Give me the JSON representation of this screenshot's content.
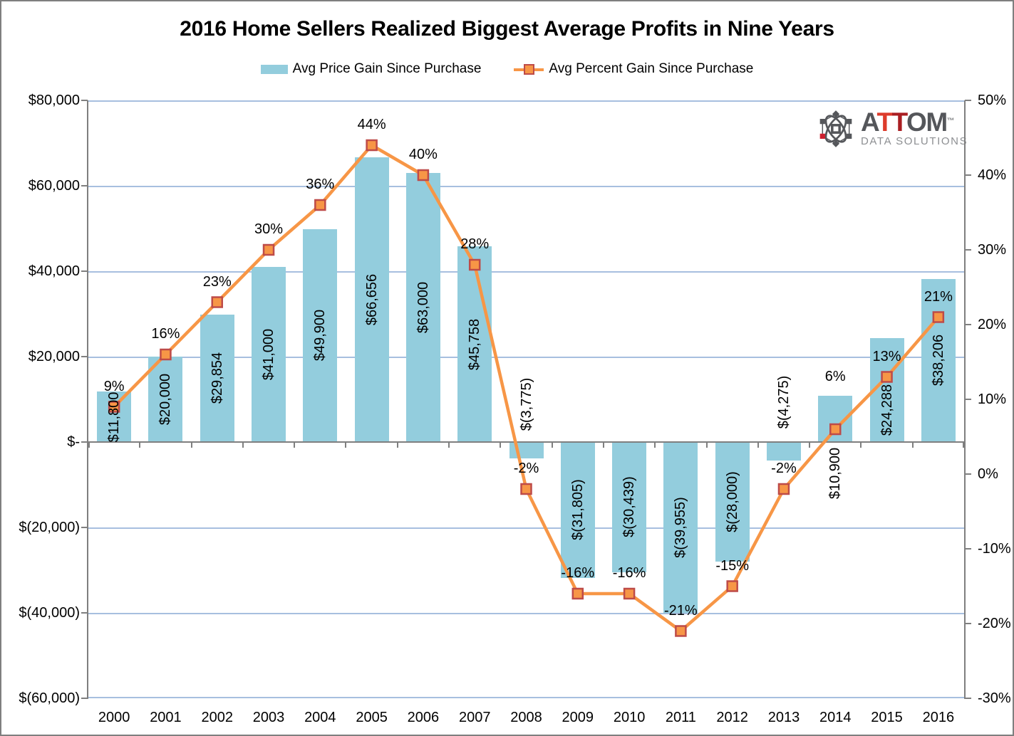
{
  "title": "2016 Home Sellers Realized Biggest Average Profits in Nine Years",
  "legend": [
    {
      "label": "Avg Price Gain Since Purchase",
      "swatch": "bar",
      "color": "#93CDDD"
    },
    {
      "label": "Avg Percent Gain Since Purchase",
      "swatch": "line-marker",
      "color": "#F79646",
      "marker_border": "#BE4B48"
    }
  ],
  "logo": {
    "brand": "ATTOM",
    "brand_letter_colors": [
      "#54565A",
      "#DD3B2B",
      "#A91E22",
      "#54565A",
      "#54565A"
    ],
    "trademark": "™",
    "subtitle": "DATA SOLUTIONS",
    "icon": "atom-logo-icon",
    "icon_gray": "#55575B",
    "icon_red": "#CE202F"
  },
  "chart_data": {
    "type": "combo_bar_line",
    "categories": [
      "2000",
      "2001",
      "2002",
      "2003",
      "2004",
      "2005",
      "2006",
      "2007",
      "2008",
      "2009",
      "2010",
      "2011",
      "2012",
      "2013",
      "2014",
      "2015",
      "2016"
    ],
    "series": [
      {
        "name": "Avg Price Gain Since Purchase",
        "chart": "bar",
        "axis": "left",
        "color": "#93CDDD",
        "values": [
          11800,
          20000,
          29854,
          41000,
          49900,
          66656,
          63000,
          45758,
          -3775,
          -31805,
          -30439,
          -39955,
          -28000,
          -4275,
          10900,
          24288,
          38206
        ],
        "data_labels": [
          "$11,800",
          "$20,000",
          "$29,854",
          "$41,000",
          "$49,900",
          "$66,656",
          "$63,000",
          "$45,758",
          "$(3,775)",
          "$(31,805)",
          "$(30,439)",
          "$(39,955)",
          "$(28,000)",
          "$(4,275)",
          "$10,900",
          "$24,288",
          "$38,206"
        ]
      },
      {
        "name": "Avg Percent Gain Since Purchase",
        "chart": "line",
        "axis": "right",
        "color": "#F79646",
        "marker": "square",
        "marker_border": "#BE4B48",
        "values": [
          9,
          16,
          23,
          30,
          36,
          44,
          40,
          28,
          -2,
          -16,
          -16,
          -21,
          -15,
          -2,
          6,
          13,
          21
        ],
        "data_labels": [
          "9%",
          "16%",
          "23%",
          "30%",
          "36%",
          "44%",
          "40%",
          "28%",
          "-2%",
          "-16%",
          "-16%",
          "-21%",
          "-15%",
          "-2%",
          "6%",
          "13%",
          "21%"
        ]
      }
    ],
    "left_axis": {
      "format": "currency",
      "min": -60000,
      "max": 80000,
      "step": 20000,
      "tick_labels": [
        "$80,000",
        "$60,000",
        "$40,000",
        "$20,000",
        "$-",
        "$(20,000)",
        "$(40,000)",
        "$(60,000)"
      ]
    },
    "right_axis": {
      "format": "percent",
      "min": -30,
      "max": 50,
      "step": 10,
      "tick_labels": [
        "50%",
        "40%",
        "30%",
        "20%",
        "10%",
        "0%",
        "-10%",
        "-20%",
        "-30%"
      ]
    },
    "gridlines": "horizontal",
    "legend_position": "top",
    "grid_color": "#a7bfdf",
    "axis_color": "#7f7f7f",
    "label_layout": {
      "bar_label_dy": {
        "2008": -64,
        "2013": -69,
        "2014": 77,
        "2015": 28
      },
      "pct_label_dy": {
        "2014": -74
      },
      "pct_label_dy_default": -29
    }
  }
}
